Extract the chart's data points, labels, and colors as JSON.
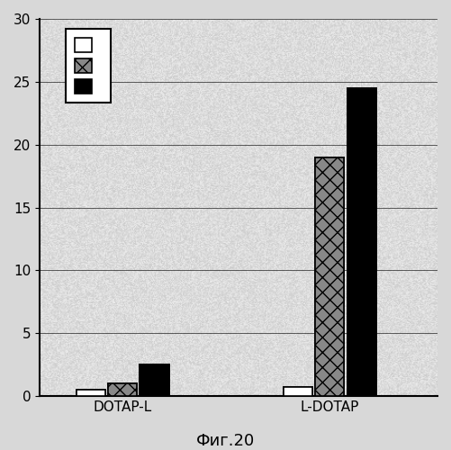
{
  "groups": [
    "DOTAP-L",
    "L-DOTAP"
  ],
  "series": [
    {
      "label": "",
      "color": "white",
      "hatch": "",
      "values": [
        0.5,
        0.7
      ]
    },
    {
      "label": "",
      "color": "#888888",
      "hatch": "xx",
      "values": [
        1.0,
        19.0
      ]
    },
    {
      "label": "",
      "color": "black",
      "hatch": "",
      "values": [
        2.5,
        24.5
      ]
    }
  ],
  "ylim": [
    0,
    30
  ],
  "yticks": [
    0,
    5,
    10,
    15,
    20,
    25,
    30
  ],
  "caption": "Фиг.20",
  "bar_width": 0.07,
  "group_centers": [
    0.22,
    0.72
  ],
  "legend_loc": "upper left",
  "background_color": "#d8d8d8",
  "fig_width": 5.01,
  "fig_height": 5.0,
  "dpi": 100
}
